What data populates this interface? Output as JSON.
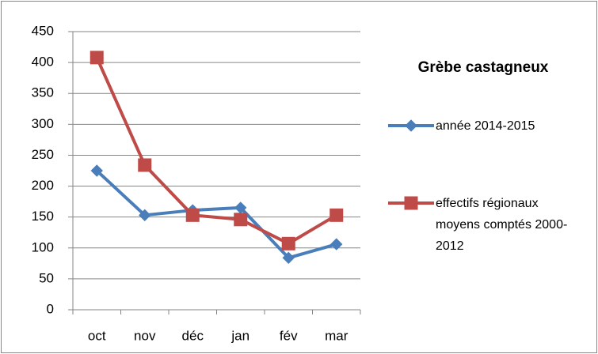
{
  "chart_data": {
    "type": "line",
    "title": "Grèbe castagneux",
    "categories": [
      "oct",
      "nov",
      "déc",
      "jan",
      "fév",
      "mar"
    ],
    "series": [
      {
        "name": "année 2014-2015",
        "color": "#4a7ebb",
        "marker": "diamond",
        "values": [
          225,
          153,
          161,
          165,
          84,
          106
        ]
      },
      {
        "name": "effectifs régionaux moyens comptés 2000-2012",
        "color": "#be4b48",
        "marker": "square",
        "values": [
          408,
          234,
          153,
          146,
          107,
          153
        ]
      }
    ],
    "ylim": [
      0,
      450
    ],
    "yticks": [
      0,
      50,
      100,
      150,
      200,
      250,
      300,
      350,
      400,
      450
    ],
    "grid": true,
    "legend": "right"
  }
}
